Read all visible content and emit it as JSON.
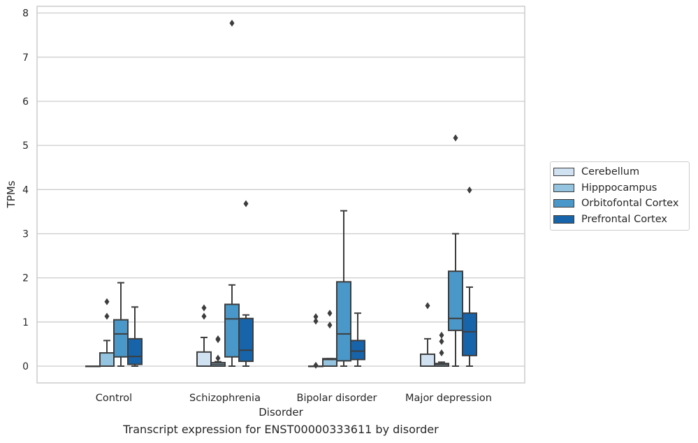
{
  "chart_data": {
    "type": "box",
    "title": "",
    "caption": "Transcript expression for ENST00000333611 by disorder",
    "xlabel": "Disorder",
    "ylabel": "TPMs",
    "ylim": [
      -0.38,
      8.15
    ],
    "yticks": [
      0,
      1,
      2,
      3,
      4,
      5,
      6,
      7,
      8
    ],
    "grid": "horizontal",
    "legend_position": "right",
    "categories": [
      "Control",
      "Schizophrenia",
      "Bipolar disorder",
      "Major depression"
    ],
    "series": [
      {
        "name": "Cerebellum",
        "color": "#d0e1f2",
        "boxes": [
          {
            "whislo": 0,
            "q1": 0,
            "med": 0,
            "q3": 0,
            "whishi": 0,
            "fliers": []
          },
          {
            "whislo": 0,
            "q1": 0,
            "med": 0,
            "q3": 0.32,
            "whishi": 0.65,
            "fliers": [
              1.13,
              1.32
            ]
          },
          {
            "whislo": 0,
            "q1": 0,
            "med": 0,
            "q3": 0,
            "whishi": 0,
            "fliers": [
              0.02,
              1.02,
              1.12
            ]
          },
          {
            "whislo": 0,
            "q1": 0,
            "med": 0,
            "q3": 0.27,
            "whishi": 0.62,
            "fliers": [
              1.37
            ]
          }
        ]
      },
      {
        "name": "Hipppocampus",
        "color": "#94c4df",
        "boxes": [
          {
            "whislo": 0,
            "q1": 0,
            "med": 0,
            "q3": 0.3,
            "whishi": 0.58,
            "fliers": [
              1.13,
              1.46
            ]
          },
          {
            "whislo": 0,
            "q1": 0,
            "med": 0.04,
            "q3": 0.08,
            "whishi": 0.1,
            "fliers": [
              0.18,
              0.6,
              0.62
            ]
          },
          {
            "whislo": 0,
            "q1": 0,
            "med": 0.15,
            "q3": 0.17,
            "whishi": 0.17,
            "fliers": [
              0.93,
              1.2
            ]
          },
          {
            "whislo": 0,
            "q1": 0,
            "med": 0.04,
            "q3": 0.06,
            "whishi": 0.09,
            "fliers": [
              0.3,
              0.56,
              0.7
            ]
          }
        ]
      },
      {
        "name": "Orbitofontal Cortex",
        "color": "#4a98c9",
        "boxes": [
          {
            "whislo": 0,
            "q1": 0.21,
            "med": 0.73,
            "q3": 1.05,
            "whishi": 1.89,
            "fliers": []
          },
          {
            "whislo": 0,
            "q1": 0.21,
            "med": 1.07,
            "q3": 1.4,
            "whishi": 1.84,
            "fliers": [
              7.77
            ]
          },
          {
            "whislo": 0,
            "q1": 0.12,
            "med": 0.73,
            "q3": 1.91,
            "whishi": 3.52,
            "fliers": []
          },
          {
            "whislo": 0,
            "q1": 0.81,
            "med": 1.08,
            "q3": 2.15,
            "whishi": 3.0,
            "fliers": [
              5.17
            ]
          }
        ]
      },
      {
        "name": "Prefrontal Cortex",
        "color": "#1764ab",
        "boxes": [
          {
            "whislo": 0,
            "q1": 0.04,
            "med": 0.22,
            "q3": 0.62,
            "whishi": 1.34,
            "fliers": []
          },
          {
            "whislo": 0,
            "q1": 0.11,
            "med": 0.36,
            "q3": 1.08,
            "whishi": 1.16,
            "fliers": [
              3.68
            ]
          },
          {
            "whislo": 0,
            "q1": 0.15,
            "med": 0.34,
            "q3": 0.58,
            "whishi": 1.2,
            "fliers": []
          },
          {
            "whislo": 0,
            "q1": 0.24,
            "med": 0.78,
            "q3": 1.2,
            "whishi": 1.79,
            "fliers": [
              3.99
            ]
          }
        ]
      }
    ]
  }
}
